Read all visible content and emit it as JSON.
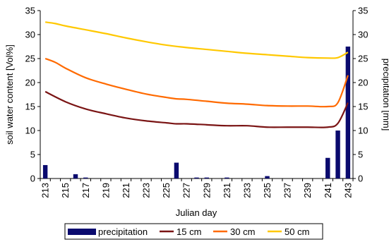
{
  "chart_data": {
    "type": "bar+line",
    "xlabel": "Julian day",
    "ylabel_left": "soil water content [Vol%]",
    "ylabel_right": "precipitation [mm]",
    "ylim_left": [
      0,
      35
    ],
    "ylim_right": [
      0,
      35
    ],
    "y_ticks": [
      "0",
      "5",
      "10",
      "15",
      "20",
      "25",
      "30",
      "35"
    ],
    "x_range": [
      213,
      243
    ],
    "x_tick_labels": [
      "213",
      "215",
      "217",
      "219",
      "221",
      "223",
      "225",
      "227",
      "229",
      "231",
      "233",
      "235",
      "237",
      "239",
      "241",
      "243"
    ],
    "precipitation": {
      "name": "precipitation",
      "color": "#0A0A6E",
      "axis": "right",
      "days": [
        213,
        214,
        215,
        216,
        217,
        218,
        219,
        220,
        221,
        222,
        223,
        224,
        225,
        226,
        227,
        228,
        229,
        230,
        231,
        232,
        233,
        234,
        235,
        236,
        237,
        238,
        239,
        240,
        241,
        242,
        243
      ],
      "values": [
        2.8,
        0,
        0,
        0.9,
        0.2,
        0,
        0,
        0,
        0,
        0,
        0,
        0,
        0,
        3.3,
        0,
        0.2,
        0.2,
        0,
        0.2,
        0,
        0,
        0,
        0.5,
        0,
        0,
        0,
        0,
        0,
        4.3,
        10,
        27.5
      ]
    },
    "series": [
      {
        "name": "15 cm",
        "color": "#7A1414",
        "x": [
          213,
          215,
          217,
          219,
          221,
          223,
          225,
          226,
          227,
          229,
          231,
          233,
          235,
          237,
          239,
          241,
          242,
          243
        ],
        "values": [
          18.1,
          16.0,
          14.5,
          13.5,
          12.6,
          12.0,
          11.6,
          11.4,
          11.4,
          11.2,
          11.0,
          11.0,
          10.7,
          10.7,
          10.7,
          10.7,
          11.5,
          15.8
        ]
      },
      {
        "name": "30 cm",
        "color": "#FF6A00",
        "x": [
          213,
          214,
          215,
          217,
          219,
          221,
          223,
          225,
          226,
          227,
          229,
          231,
          233,
          235,
          237,
          239,
          241,
          242,
          243
        ],
        "values": [
          25.0,
          24.2,
          23.0,
          21.0,
          19.7,
          18.6,
          17.6,
          16.9,
          16.6,
          16.5,
          16.1,
          15.7,
          15.5,
          15.2,
          15.1,
          15.1,
          15.0,
          15.8,
          21.5
        ]
      },
      {
        "name": "50 cm",
        "color": "#FFC800",
        "x": [
          213,
          214,
          215,
          217,
          219,
          221,
          223,
          225,
          227,
          229,
          231,
          233,
          235,
          237,
          239,
          241,
          242,
          243
        ],
        "values": [
          32.6,
          32.3,
          31.8,
          31.0,
          30.2,
          29.3,
          28.5,
          27.8,
          27.3,
          26.9,
          26.5,
          26.1,
          25.8,
          25.5,
          25.2,
          25.1,
          25.2,
          26.3
        ]
      }
    ],
    "legend": [
      "precipitation",
      "15 cm",
      "30 cm",
      "50 cm"
    ],
    "legend_position": "bottom",
    "grid": false
  }
}
